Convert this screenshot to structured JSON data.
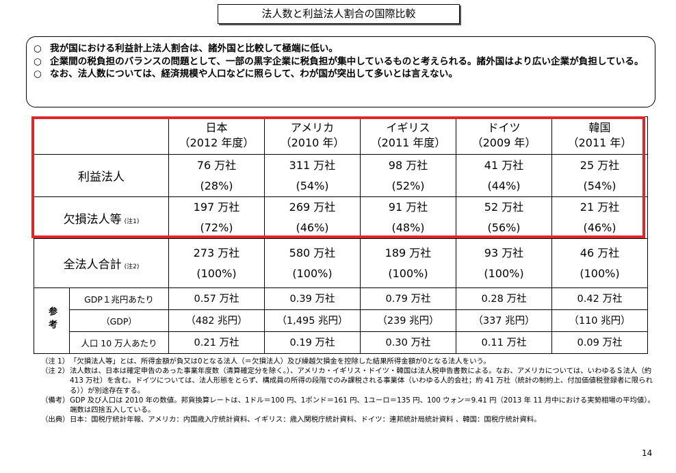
{
  "title": "法人数と利益法人割合の国際比較",
  "summary": [
    {
      "mark": "○",
      "text": "我が国における利益計上法人割合は、諸外国と比較して極端に低い。"
    },
    {
      "mark": "○",
      "text": "企業間の税負担のバランスの問題として、一部の黒字企業に税負担が集中しているものと考えられる。諸外国はより広い企業が負担している。"
    },
    {
      "mark": "○",
      "text": "なお、法人数については、経済規模や人口などに照らして、わが国が突出して多いとは言えない。"
    }
  ],
  "table": {
    "countries": [
      {
        "name": "日本",
        "year": "（2012 年度）"
      },
      {
        "name": "アメリカ",
        "year": "（2010 年）"
      },
      {
        "name": "イギリス",
        "year": "（2011 年度）"
      },
      {
        "name": "ドイツ",
        "year": "（2009 年）"
      },
      {
        "name": "韓国",
        "year": "（2011 年）"
      }
    ],
    "profit": {
      "label": "利益法人",
      "counts": [
        "76 万社",
        "311 万社",
        "98 万社",
        "41 万社",
        "25 万社"
      ],
      "shares": [
        "(28%)",
        "(54%)",
        "(52%)",
        "(44%)",
        "(54%)"
      ]
    },
    "loss": {
      "label": "欠損法人等",
      "note": "(注1)",
      "counts": [
        "197 万社",
        "269 万社",
        "91 万社",
        "52 万社",
        "21 万社"
      ],
      "shares": [
        "(72%)",
        "(46%)",
        "(48%)",
        "(56%)",
        "(46%)"
      ]
    },
    "total": {
      "label": "全法人合計",
      "note": "(注2)",
      "counts": [
        "273 万社",
        "580 万社",
        "189 万社",
        "93 万社",
        "46 万社"
      ],
      "shares": [
        "(100%)",
        "(100%)",
        "(100%)",
        "(100%)",
        "(100%)"
      ]
    },
    "reference": {
      "label": "参考",
      "per_gdp": {
        "label": "GDP１兆円あたり",
        "values": [
          "0.57 万社",
          "0.39 万社",
          "0.79 万社",
          "0.28 万社",
          "0.42 万社"
        ]
      },
      "gdp": {
        "label": "（GDP）",
        "values": [
          "（482 兆円）",
          "（1,495 兆円）",
          "（239 兆円）",
          "（337 兆円）",
          "（110 兆円）"
        ]
      },
      "per_pop": {
        "label": "人口 10 万人あたり",
        "values": [
          "0.21 万社",
          "0.19 万社",
          "0.30 万社",
          "0.11 万社",
          "0.09 万社"
        ]
      }
    }
  },
  "notes": [
    {
      "label": "（注 1）",
      "text": "「欠損法人等」とは、所得金額が負又は0となる法人（＝欠損法人）及び繰越欠損金を控除した結果所得金額が0となる法人をいう。"
    },
    {
      "label": "（注 2）",
      "text": "法人数は、日本は確定申告のあった事業年度数（清算確定分を除く。）、アメリカ・イギリス・ドイツ・韓国は法人税申告書数による。なお、アメリカについては、いわゆるＳ法人（約 413 万社）を含む。ドイツについては、法人形態をとらず、構成員の所得の段階でのみ課税される事業体（いわゆる人的会社；約 41 万社（統計の制約上、付加価値税登録者に限られる））が別途存在する。"
    },
    {
      "label": "（備考）",
      "text": "GDP 及び人口は 2010 年の数値。邦貨換算レートは、1ドル＝100 円、1ポンド＝161 円、1ユーロ＝135 円、100 ウォン＝9.41 円（2013 年 11 月中における実勢相場の平均値）。端数は四捨五入している。"
    },
    {
      "label": "（出典）",
      "text": "日本：国税庁統計年報、アメリカ：内国歳入庁統計資料、イギリス：歳入関税庁統計資料、ドイツ：連邦統計局統計資料 、韓国：国税庁統計資料。"
    }
  ],
  "page_number": "14",
  "colors": {
    "highlight_frame": "#e0262a"
  }
}
